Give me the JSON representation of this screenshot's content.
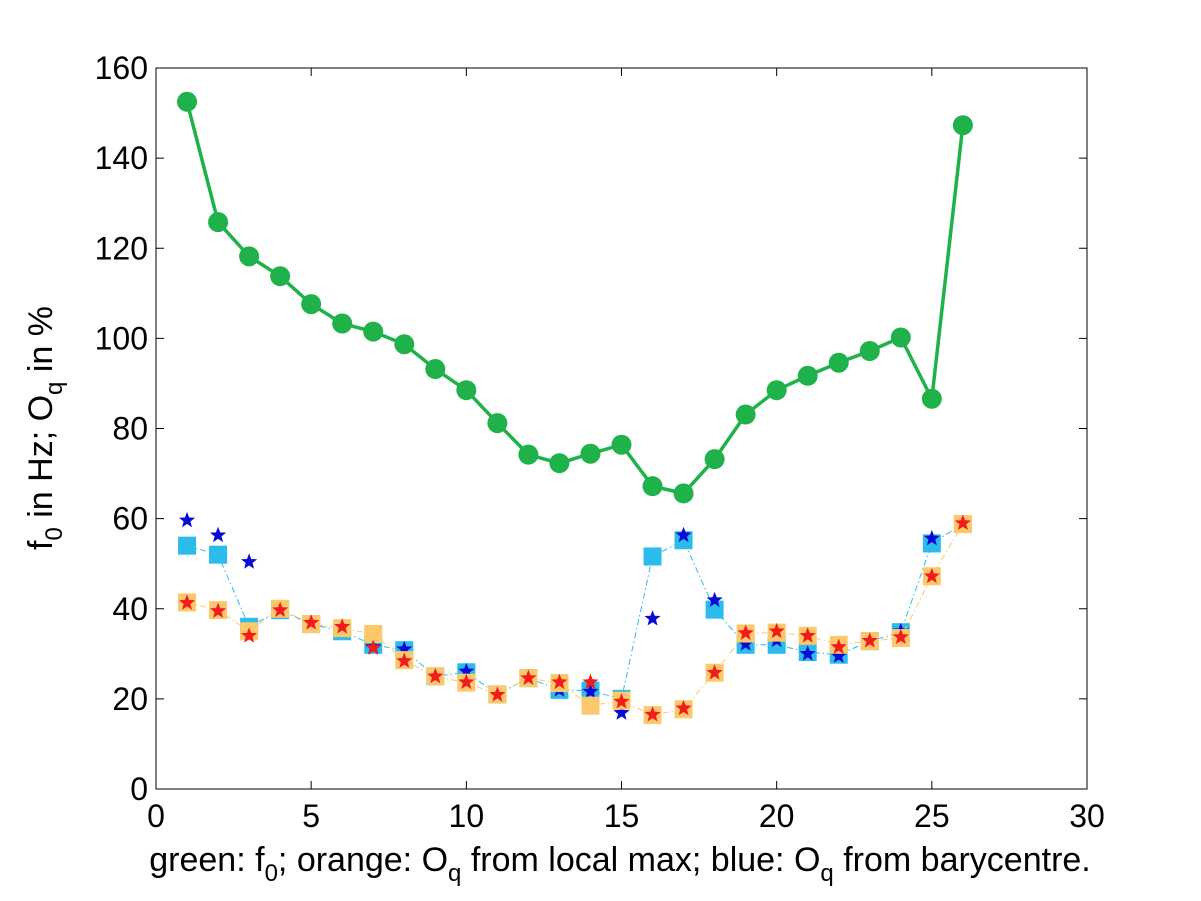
{
  "chart_data": {
    "type": "line",
    "xlim": [
      0,
      30
    ],
    "ylim": [
      0,
      160
    ],
    "xticks": [
      "0",
      "5",
      "10",
      "15",
      "20",
      "25",
      "30"
    ],
    "yticks": [
      "0",
      "20",
      "40",
      "60",
      "80",
      "100",
      "120",
      "140",
      "160"
    ],
    "grid": false,
    "legend": "none",
    "ylabel": {
      "parts": [
        "f",
        "0",
        " in Hz; O",
        "q",
        " in %"
      ]
    },
    "xlabel": {
      "parts": [
        "green: f",
        "0",
        "; orange: O",
        "q",
        " from local max; blue: O",
        "q",
        " from barycentre."
      ]
    },
    "series": [
      {
        "color": "#1fb24a",
        "marker": "circle",
        "x": [
          1,
          2,
          3,
          4,
          5,
          6,
          7,
          8,
          9,
          10,
          11,
          12,
          13,
          14,
          15,
          16,
          17,
          18,
          19,
          20,
          21,
          22,
          23,
          24,
          25,
          26
        ],
        "y": [
          152.5,
          125.8,
          118.2,
          113.8,
          107.6,
          103.3,
          101.5,
          98.7,
          93.2,
          88.5,
          81.2,
          74.2,
          72.3,
          74.4,
          76.4,
          67.2,
          65.6,
          73.2,
          83.1,
          88.5,
          91.7,
          94.6,
          97.2,
          100.2,
          86.6,
          147.3
        ]
      },
      {
        "color": "#2bbcec",
        "marker": "square",
        "x": [
          1,
          2,
          3,
          4,
          5,
          6,
          7,
          8,
          9,
          10,
          11,
          12,
          13,
          14,
          15,
          16,
          17,
          18,
          19,
          20,
          21,
          22,
          23,
          24,
          25,
          26
        ],
        "y": [
          54.0,
          52.0,
          36.0,
          39.7,
          36.6,
          35.0,
          32.0,
          30.8,
          25.0,
          25.9,
          21.0,
          24.6,
          22.0,
          21.8,
          20.0,
          51.6,
          55.2,
          39.8,
          32.0,
          32.0,
          30.4,
          29.8,
          32.8,
          34.8,
          54.5,
          58.8
        ]
      },
      {
        "color": "#0a0ad6",
        "marker": "star",
        "x": [
          1,
          2,
          3,
          4,
          5,
          6,
          7,
          8,
          9,
          10,
          11,
          12,
          13,
          14,
          15,
          16,
          17,
          18,
          19,
          20,
          21,
          22,
          23,
          24,
          25,
          26
        ],
        "y": [
          59.6,
          56.3,
          50.4,
          40.0,
          36.7,
          36.0,
          31.5,
          31.0,
          25.1,
          26.1,
          20.9,
          24.7,
          22.0,
          21.6,
          16.9,
          37.8,
          56.3,
          41.9,
          32.2,
          33.0,
          30.0,
          29.5,
          32.8,
          35.0,
          55.6,
          59.0
        ]
      },
      {
        "color": "#fcc86c",
        "marker": "square",
        "x": [
          1,
          2,
          3,
          4,
          5,
          6,
          7,
          8,
          9,
          10,
          11,
          12,
          13,
          14,
          15,
          16,
          17,
          18,
          19,
          20,
          21,
          22,
          23,
          24,
          25,
          26
        ],
        "y": [
          41.4,
          39.7,
          35.0,
          40.0,
          36.6,
          35.7,
          34.4,
          28.6,
          25.0,
          23.6,
          21.0,
          24.6,
          23.5,
          18.5,
          19.6,
          16.4,
          17.7,
          25.8,
          34.5,
          34.7,
          34.0,
          32.0,
          32.8,
          33.5,
          47.2,
          58.8
        ]
      },
      {
        "color": "#f21c1c",
        "marker": "star",
        "x": [
          1,
          2,
          3,
          4,
          5,
          6,
          7,
          8,
          9,
          10,
          11,
          12,
          13,
          14,
          15,
          16,
          17,
          18,
          19,
          20,
          21,
          22,
          23,
          24,
          25,
          26
        ],
        "y": [
          41.3,
          39.5,
          34.0,
          39.7,
          36.9,
          36.0,
          31.3,
          28.4,
          25.0,
          23.7,
          20.9,
          24.6,
          23.7,
          23.7,
          19.4,
          16.5,
          17.9,
          25.8,
          34.6,
          35.0,
          34.0,
          31.5,
          32.9,
          33.7,
          47.2,
          59.0
        ]
      }
    ]
  }
}
